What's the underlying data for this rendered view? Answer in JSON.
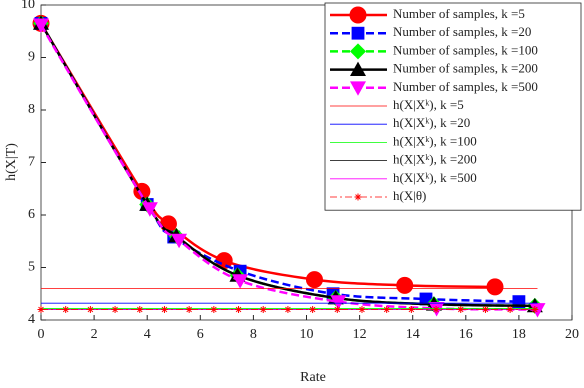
{
  "chart_data": {
    "type": "line",
    "xlabel": "Rate",
    "ylabel": "h(X|T)",
    "xlim": [
      0,
      20
    ],
    "ylim": [
      4,
      10
    ],
    "xticks": [
      0,
      2,
      4,
      6,
      8,
      10,
      12,
      14,
      16,
      18,
      20
    ],
    "yticks": [
      4,
      5,
      6,
      7,
      8,
      9,
      10
    ],
    "legend": "upper right",
    "series": [
      {
        "name": "Number of samples, k =5",
        "color": "#ff0000",
        "dash": "solid",
        "marker": "circle",
        "width": 2.5,
        "smooth": true,
        "x": [
          0,
          3.8,
          4.8,
          6.9,
          10.3,
          13.7,
          17.1
        ],
        "values": [
          9.65,
          6.45,
          5.83,
          5.13,
          4.77,
          4.66,
          4.63
        ]
      },
      {
        "name": "Number of samples, k =20",
        "color": "#0000ff",
        "dash": "dashed",
        "marker": "square",
        "width": 2.5,
        "smooth": true,
        "x": [
          0,
          4,
          5,
          7.5,
          11,
          14.5,
          18
        ],
        "values": [
          9.65,
          6.2,
          5.58,
          4.93,
          4.5,
          4.4,
          4.35
        ]
      },
      {
        "name": "Number of samples, k =100",
        "color": "#00ff00",
        "dash": "dashed",
        "marker": "diamond",
        "width": 2.5,
        "smooth": true,
        "x": [
          0,
          4,
          5.1,
          7.4,
          11.1,
          14.8,
          18.6
        ],
        "values": [
          9.65,
          6.2,
          5.6,
          4.85,
          4.42,
          4.3,
          4.27
        ]
      },
      {
        "name": "Number of samples, k =200",
        "color": "#000000",
        "dash": "solid",
        "marker": "triangle-up",
        "width": 2.5,
        "smooth": true,
        "x": [
          0,
          4,
          5.1,
          7.4,
          11.1,
          14.8,
          18.6
        ],
        "values": [
          9.65,
          6.2,
          5.6,
          4.85,
          4.42,
          4.3,
          4.27
        ]
      },
      {
        "name": "Number of samples, k =500",
        "color": "#ff00ff",
        "dash": "dashed",
        "marker": "triangle-down",
        "width": 2.5,
        "smooth": true,
        "x": [
          0,
          4.1,
          5.2,
          7.5,
          11.2,
          14.9,
          18.7
        ],
        "values": [
          9.62,
          6.12,
          5.52,
          4.75,
          4.35,
          4.22,
          4.2
        ]
      },
      {
        "name": "h(X|Xᵏ), k =5",
        "color": "#ff0000",
        "dash": "solid",
        "marker": "none",
        "width": 0.8,
        "x": [
          0,
          18.7
        ],
        "values": [
          4.6,
          4.6
        ]
      },
      {
        "name": "h(X|Xᵏ), k =20",
        "color": "#0000ff",
        "dash": "solid",
        "marker": "none",
        "width": 0.8,
        "x": [
          0,
          18.7
        ],
        "values": [
          4.32,
          4.32
        ]
      },
      {
        "name": "h(X|Xᵏ), k =100",
        "color": "#00ff00",
        "dash": "solid",
        "marker": "none",
        "width": 0.8,
        "x": [
          0,
          18.7
        ],
        "values": [
          4.22,
          4.22
        ]
      },
      {
        "name": "h(X|Xᵏ), k =200",
        "color": "#000000",
        "dash": "solid",
        "marker": "none",
        "width": 0.8,
        "x": [
          0,
          18.7
        ],
        "values": [
          4.2,
          4.2
        ]
      },
      {
        "name": "h(X|Xᵏ), k =500",
        "color": "#ff00ff",
        "dash": "solid",
        "marker": "none",
        "width": 0.8,
        "x": [
          0,
          18.7
        ],
        "values": [
          4.2,
          4.2
        ]
      },
      {
        "name": "h(X|θ)",
        "color": "#ff0000",
        "dash": "dashdot",
        "marker": "asterisk",
        "width": 0.8,
        "x": [
          0,
          0.93,
          1.86,
          2.79,
          3.72,
          4.65,
          5.58,
          6.51,
          7.44,
          8.37,
          9.3,
          10.23,
          11.16,
          12.09,
          13.02,
          13.95,
          14.88,
          15.81,
          16.74,
          17.67,
          18.6
        ],
        "values": [
          4.2,
          4.2,
          4.2,
          4.2,
          4.2,
          4.2,
          4.2,
          4.2,
          4.2,
          4.2,
          4.2,
          4.2,
          4.2,
          4.2,
          4.2,
          4.2,
          4.2,
          4.2,
          4.2,
          4.2,
          4.2
        ]
      }
    ]
  }
}
